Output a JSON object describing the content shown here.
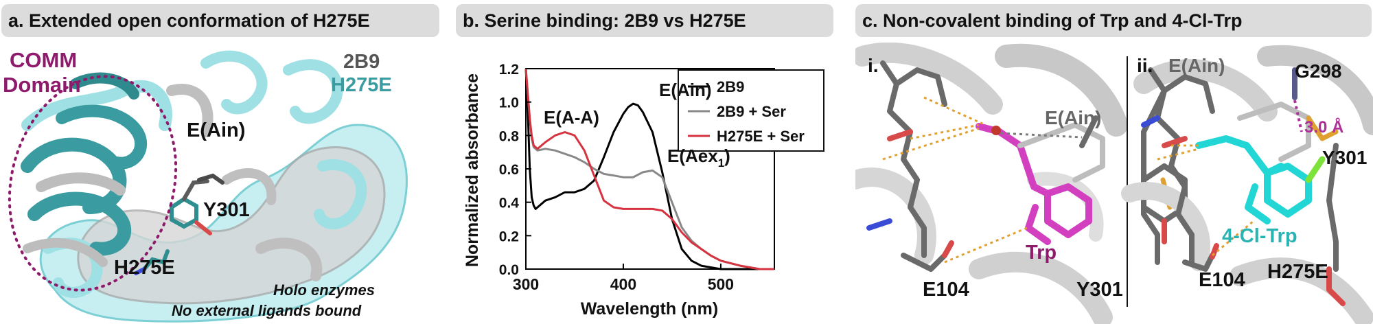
{
  "panels": {
    "a": {
      "header": "a. Extended open conformation of H275E",
      "labels": {
        "comm_line1": "COMM",
        "comm_line2": "Domain",
        "legend_2b9": "2B9",
        "legend_h275e": "H275E",
        "e_ain": "E(Ain)",
        "y301": "Y301",
        "h275e": "H275E",
        "note_line1": "Holo enzymes",
        "note_line2": "No external ligands bound"
      },
      "colors": {
        "comm": "#8e1a6c",
        "teal": "#3a9ca0",
        "light_teal": "#9fe0e4",
        "gray": "#bfbfbf",
        "legend_2b9": "#555555"
      }
    },
    "b": {
      "header": "b. Serine binding: 2B9 vs H275E",
      "peak_labels": {
        "e_ain": "E(Ain)",
        "e_aa": "E(A-A)",
        "e_aex": "E(Aex",
        "e_aex_sub": "1",
        "e_aex_close": ")"
      }
    },
    "c": {
      "header": "c. Non-covalent binding of Trp and 4-Cl-Trp",
      "sub_i": {
        "label": "i.",
        "e_ain": "E(Ain)",
        "trp": "Trp",
        "e104": "E104",
        "y301": "Y301"
      },
      "sub_ii": {
        "label": "ii.",
        "e_ain": "E(Ain)",
        "g298": "G298",
        "distance": "3.0 Å",
        "y301": "Y301",
        "cl_trp": "4-Cl-Trp",
        "e104": "E104",
        "h275e": "H275E"
      },
      "colors": {
        "trp": "#8e1a6c",
        "cl_trp": "#2ab3b3",
        "magenta_stick": "#d23fbf",
        "cyan_stick": "#22d6d6"
      }
    }
  },
  "chart_data": {
    "type": "line",
    "title": "",
    "xlabel": "Wavelength (nm)",
    "ylabel": "Normalized absorbance",
    "xlim": [
      300,
      555
    ],
    "ylim": [
      0,
      1.2
    ],
    "xticks": [
      300,
      400,
      500
    ],
    "yticks": [
      0.0,
      0.2,
      0.4,
      0.6,
      0.8,
      1.0,
      1.2
    ],
    "legend_position": "top-right",
    "grid": false,
    "series": [
      {
        "name": "2B9",
        "color": "#000000",
        "x": [
          300,
          302,
          304,
          306,
          308,
          310,
          314,
          320,
          330,
          340,
          350,
          360,
          370,
          380,
          390,
          400,
          405,
          410,
          415,
          420,
          430,
          440,
          450,
          460,
          470,
          480,
          500,
          520,
          540,
          555
        ],
        "y": [
          1.2,
          0.95,
          0.6,
          0.43,
          0.38,
          0.36,
          0.38,
          0.41,
          0.43,
          0.46,
          0.46,
          0.48,
          0.53,
          0.67,
          0.82,
          0.93,
          0.97,
          0.99,
          0.98,
          0.94,
          0.82,
          0.58,
          0.3,
          0.12,
          0.05,
          0.02,
          0.0,
          0.0,
          0.0,
          0.0
        ]
      },
      {
        "name": "2B9 + Ser",
        "color": "#888888",
        "x": [
          300,
          302,
          304,
          306,
          308,
          312,
          320,
          330,
          340,
          350,
          360,
          370,
          380,
          390,
          400,
          410,
          420,
          430,
          440,
          450,
          460,
          470,
          480,
          490,
          500,
          520,
          540,
          555
        ],
        "y": [
          1.2,
          1.05,
          0.9,
          0.78,
          0.73,
          0.71,
          0.72,
          0.71,
          0.69,
          0.67,
          0.64,
          0.6,
          0.57,
          0.56,
          0.55,
          0.55,
          0.58,
          0.59,
          0.55,
          0.4,
          0.25,
          0.17,
          0.12,
          0.08,
          0.05,
          0.02,
          0.0,
          0.0
        ]
      },
      {
        "name": "H275E + Ser",
        "color": "#d63340",
        "x": [
          300,
          302,
          304,
          306,
          308,
          312,
          320,
          330,
          340,
          350,
          360,
          370,
          380,
          390,
          400,
          410,
          420,
          430,
          440,
          450,
          460,
          470,
          480,
          490,
          500,
          520,
          540,
          555
        ],
        "y": [
          1.2,
          1.05,
          0.9,
          0.8,
          0.74,
          0.72,
          0.76,
          0.8,
          0.82,
          0.8,
          0.71,
          0.56,
          0.41,
          0.37,
          0.36,
          0.36,
          0.36,
          0.36,
          0.35,
          0.3,
          0.22,
          0.16,
          0.12,
          0.08,
          0.05,
          0.02,
          0.0,
          0.0
        ]
      }
    ],
    "annotations": [
      {
        "text": "E(Ain)",
        "x": 412,
        "y": 1.04
      },
      {
        "text": "E(A-A)",
        "x": 342,
        "y": 0.86
      },
      {
        "text": "E(Aex1)",
        "x": 432,
        "y": 0.64
      }
    ]
  }
}
